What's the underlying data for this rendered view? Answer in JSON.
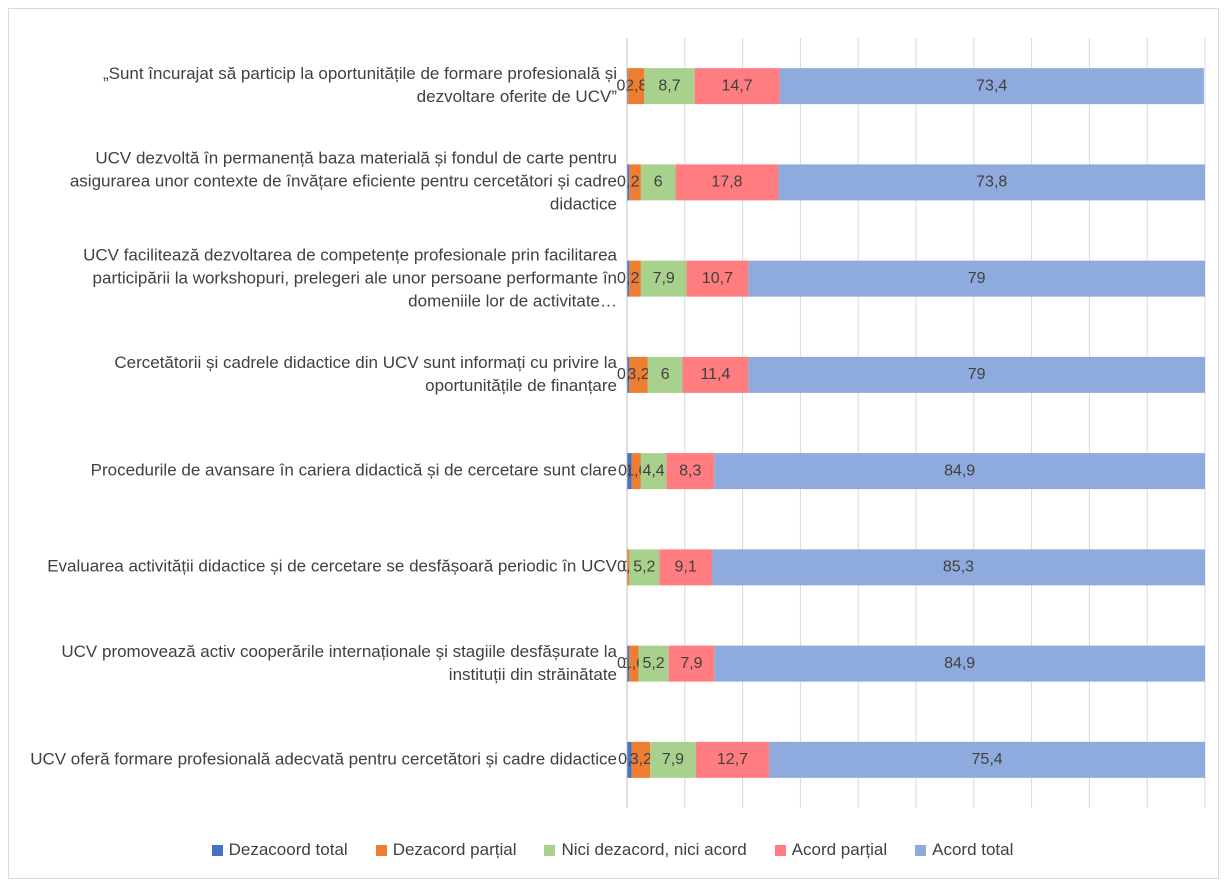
{
  "chart_data": {
    "type": "stacked-bar-horizontal",
    "categories": [
      "„Sunt încurajat să particip la oportunitățile de formare profesională și dezvoltare oferite de UCV”",
      "UCV dezvoltă în permanență baza materială și fondul de carte pentru asigurarea unor contexte de învățare eficiente pentru cercetători și cadre didactice",
      "UCV facilitează dezvoltarea de competențe profesionale prin facilitarea participării la workshopuri, prelegeri ale unor persoane performante în domeniile lor de activitate…",
      "Cercetătorii și cadrele didactice din UCV sunt informați cu privire la oportunitățile de finanțare",
      "Procedurile de avansare în cariera didactică și de cercetare sunt clare",
      "Evaluarea activității didactice și de cercetare se desfășoară periodic în UCV",
      "UCV promovează activ cooperările internaționale și stagiile desfășurate la instituții din străinătate",
      "UCV oferă formare profesională adecvată pentru cercetători și cadre didactice"
    ],
    "series": [
      {
        "name": "Dezacoord total",
        "color": "#4472c4",
        "values": [
          0.2,
          0.4,
          0.4,
          0.4,
          0.8,
          0,
          0.4,
          0.8
        ],
        "value_labels": [
          "0,2",
          "0,4",
          "0,4",
          "0,4",
          "0,8",
          "0",
          "0,4",
          "0,8"
        ]
      },
      {
        "name": "Dezacord parțial",
        "color": "#ed7d31",
        "values": [
          2.8,
          2,
          2,
          3.2,
          1.6,
          0.4,
          1.6,
          3.2
        ],
        "value_labels": [
          "2,8",
          "2",
          "2",
          "3,2",
          "1,6",
          "0,4",
          "1,6",
          "3,2"
        ]
      },
      {
        "name": "Nici dezacord, nici acord",
        "color": "#a9d18e",
        "values": [
          8.7,
          6,
          7.9,
          6,
          4.4,
          5.2,
          5.2,
          7.9
        ],
        "value_labels": [
          "8,7",
          "6",
          "7,9",
          "6",
          "4,4",
          "5,2",
          "5,2",
          "7,9"
        ]
      },
      {
        "name": "Acord parțial",
        "color": "#ff7c80",
        "values": [
          14.7,
          17.8,
          10.7,
          11.4,
          8.3,
          9.1,
          7.9,
          12.7
        ],
        "value_labels": [
          "14,7",
          "17,8",
          "10,7",
          "11,4",
          "8,3",
          "9,1",
          "7,9",
          "12,7"
        ]
      },
      {
        "name": "Acord total",
        "color": "#8faadc",
        "values": [
          73.4,
          73.8,
          79,
          79,
          84.9,
          85.3,
          84.9,
          75.4
        ],
        "value_labels": [
          "73,4",
          "73,8",
          "79",
          "79",
          "84,9",
          "85,3",
          "84,9",
          "75,4"
        ]
      }
    ],
    "xlim": [
      0,
      100
    ],
    "xticks": [
      0,
      10,
      20,
      30,
      40,
      50,
      60,
      70,
      80,
      90,
      100
    ],
    "grid": true,
    "legend": "bottom"
  }
}
